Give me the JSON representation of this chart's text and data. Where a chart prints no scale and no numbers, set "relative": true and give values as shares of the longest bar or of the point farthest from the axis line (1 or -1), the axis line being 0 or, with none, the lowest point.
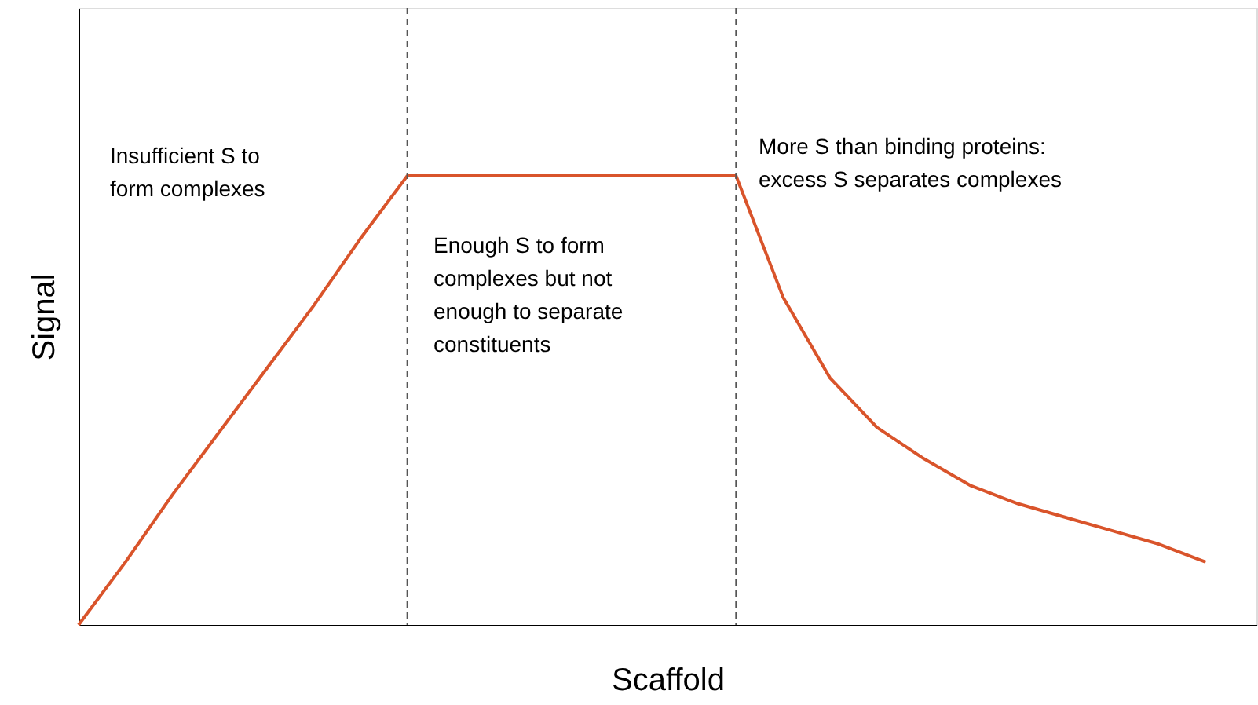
{
  "chart_data": {
    "type": "line",
    "relative": true,
    "xlabel": "Scaffold",
    "ylabel": "Signal",
    "tick_labels": false,
    "grid": false,
    "marker": "none",
    "line_style": "solid",
    "categories": [
      null,
      null,
      null,
      null,
      null,
      null,
      null,
      null,
      null,
      null,
      null,
      null,
      null,
      null,
      null,
      null,
      null,
      null,
      null,
      null,
      null,
      null,
      null,
      null,
      null
    ],
    "series": [
      {
        "color": "#d9542b",
        "values": [
          0,
          0.14,
          0.29,
          0.43,
          0.57,
          0.71,
          0.86,
          1,
          1,
          1,
          1,
          1,
          1,
          1,
          1,
          0.73,
          0.55,
          0.44,
          0.37,
          0.31,
          0.27,
          0.24,
          0.21,
          0.18,
          0.14
        ]
      }
    ],
    "ref_lines": [
      {
        "axis": "x",
        "color": "#555555",
        "line_style": "dashed"
      },
      {
        "axis": "x",
        "color": "#555555",
        "line_style": "dashed"
      }
    ],
    "annotations": [
      "Insufficient S to\nform complexes",
      "Enough S to form\ncomplexes but not\nenough to separate\nconstituents",
      "More S than binding proteins:\nexcess S separates complexes"
    ]
  }
}
